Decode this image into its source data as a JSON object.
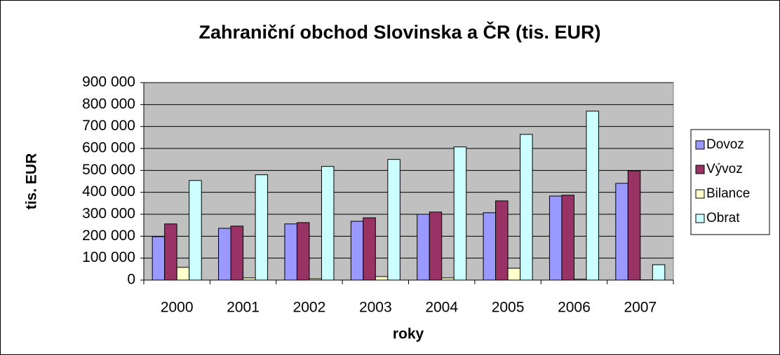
{
  "chart_data": {
    "type": "bar",
    "title": "Zahraniční obchod Slovinska a ČR (tis. EUR)",
    "x_label": "roky",
    "y_label": "tis. EUR",
    "categories": [
      "2000",
      "2001",
      "2002",
      "2003",
      "2004",
      "2005",
      "2006",
      "2007"
    ],
    "series": [
      {
        "name": "Dovoz",
        "color": "#9999ff",
        "values": [
          198000,
          236000,
          256000,
          268000,
          300000,
          307000,
          383000,
          441000
        ]
      },
      {
        "name": "Vývoz",
        "color": "#993366",
        "values": [
          256000,
          246000,
          262000,
          284000,
          310000,
          361000,
          387000,
          498000
        ]
      },
      {
        "name": "Bilance",
        "color": "#ffffcc",
        "values": [
          58000,
          10000,
          6000,
          16000,
          10000,
          54000,
          4000,
          1000
        ]
      },
      {
        "name": "Obrat",
        "color": "#ccffff",
        "values": [
          454000,
          480000,
          518000,
          550000,
          607000,
          664000,
          770000,
          70000
        ]
      }
    ],
    "ylim": [
      0,
      900000
    ],
    "yticks": [
      {
        "value": 0,
        "label": "0"
      },
      {
        "value": 100000,
        "label": "100 000"
      },
      {
        "value": 200000,
        "label": "200 000"
      },
      {
        "value": 300000,
        "label": "300 000"
      },
      {
        "value": 400000,
        "label": "400 000"
      },
      {
        "value": 500000,
        "label": "500 000"
      },
      {
        "value": 600000,
        "label": "600 000"
      },
      {
        "value": 700000,
        "label": "700 000"
      },
      {
        "value": 800000,
        "label": "800 000"
      },
      {
        "value": 900000,
        "label": "900 000"
      }
    ],
    "grid": true,
    "legend": "right"
  }
}
